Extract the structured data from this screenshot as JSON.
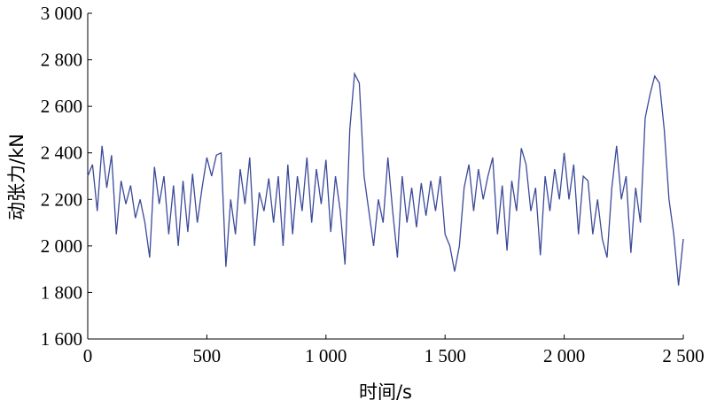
{
  "chart_data": {
    "type": "line",
    "xlabel": "时间/s",
    "ylabel": "动张力/kN",
    "x": [
      0,
      20,
      40,
      60,
      80,
      100,
      120,
      140,
      160,
      180,
      200,
      220,
      240,
      260,
      280,
      300,
      320,
      340,
      360,
      380,
      400,
      420,
      440,
      460,
      480,
      500,
      520,
      540,
      560,
      580,
      600,
      620,
      640,
      660,
      680,
      700,
      720,
      740,
      760,
      780,
      800,
      820,
      840,
      860,
      880,
      900,
      920,
      940,
      960,
      980,
      1000,
      1020,
      1040,
      1060,
      1080,
      1100,
      1120,
      1140,
      1160,
      1180,
      1200,
      1220,
      1240,
      1260,
      1280,
      1300,
      1320,
      1340,
      1360,
      1380,
      1400,
      1420,
      1440,
      1460,
      1480,
      1500,
      1520,
      1540,
      1560,
      1580,
      1600,
      1620,
      1640,
      1660,
      1680,
      1700,
      1720,
      1740,
      1760,
      1780,
      1800,
      1820,
      1840,
      1860,
      1880,
      1900,
      1920,
      1940,
      1960,
      1980,
      2000,
      2020,
      2040,
      2060,
      2080,
      2100,
      2120,
      2140,
      2160,
      2180,
      2200,
      2220,
      2240,
      2260,
      2280,
      2300,
      2320,
      2340,
      2360,
      2380,
      2400,
      2420,
      2440,
      2460,
      2480,
      2500
    ],
    "series": [
      {
        "color": "#3b4a9a",
        "values": [
          2300,
          2350,
          2150,
          2430,
          2250,
          2390,
          2050,
          2280,
          2180,
          2260,
          2120,
          2200,
          2100,
          1950,
          2340,
          2180,
          2300,
          2050,
          2260,
          2000,
          2280,
          2060,
          2310,
          2100,
          2250,
          2380,
          2300,
          2390,
          2400,
          1910,
          2200,
          2050,
          2330,
          2180,
          2380,
          2000,
          2230,
          2150,
          2290,
          2100,
          2300,
          2000,
          2350,
          2050,
          2300,
          2150,
          2380,
          2100,
          2330,
          2180,
          2370,
          2060,
          2300,
          2150,
          1920,
          2500,
          2740,
          2700,
          2300,
          2150,
          2000,
          2200,
          2100,
          2380,
          2150,
          1950,
          2300,
          2100,
          2250,
          2080,
          2270,
          2130,
          2280,
          2150,
          2300,
          2050,
          2000,
          1890,
          2000,
          2250,
          2350,
          2150,
          2330,
          2200,
          2300,
          2380,
          2050,
          2260,
          1980,
          2280,
          2150,
          2420,
          2350,
          2150,
          2250,
          1960,
          2300,
          2150,
          2330,
          2200,
          2400,
          2200,
          2350,
          2050,
          2300,
          2280,
          2050,
          2200,
          2030,
          1950,
          2250,
          2430,
          2200,
          2300,
          1970,
          2250,
          2100,
          2550,
          2650,
          2730,
          2700,
          2500,
          2200,
          2050,
          1830,
          2030
        ]
      }
    ],
    "xlim": [
      0,
      2500
    ],
    "xticks": [
      0,
      500,
      {
        "value": 1000,
        "label": "1 000"
      },
      {
        "value": 1500,
        "label": "1 500"
      },
      {
        "value": 2000,
        "label": "2 000"
      },
      {
        "value": 2500,
        "label": "2 500"
      }
    ],
    "ylim": [
      1600,
      3000
    ],
    "yticks": [
      {
        "value": 1600,
        "label": "1 600"
      },
      {
        "value": 1800,
        "label": "1 800"
      },
      {
        "value": 2000,
        "label": "2 000"
      },
      {
        "value": 2200,
        "label": "2 200"
      },
      {
        "value": 2400,
        "label": "2 400"
      },
      {
        "value": 2600,
        "label": "2 600"
      },
      {
        "value": 2800,
        "label": "2 800"
      },
      {
        "value": 3000,
        "label": "3 000"
      }
    ]
  }
}
